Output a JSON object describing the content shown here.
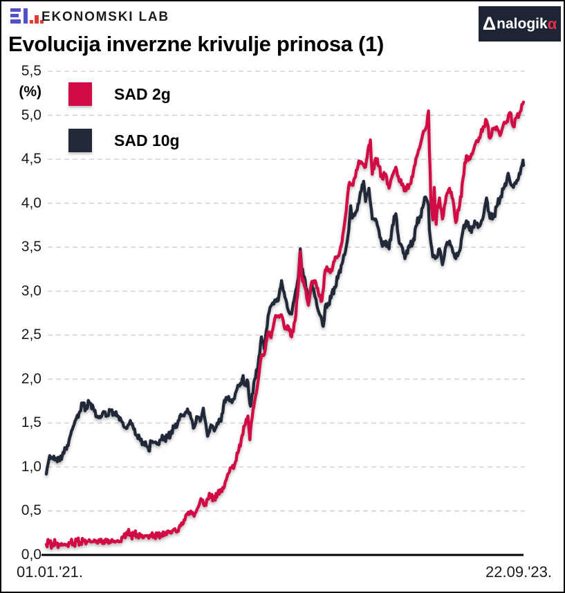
{
  "header": {
    "brand": "EKONOMSKI LAB",
    "badge": {
      "delta": "Δ",
      "white_text": "nalogik",
      "alpha": "α"
    }
  },
  "title": "Evolucija inverzne krivulje prinosa (1)",
  "colors": {
    "line_red": "#d30b44",
    "line_navy": "#212838",
    "logo_purple": "#5450c7",
    "logo_red": "#e73a31",
    "badge_bg": "#1d2433",
    "badge_alpha": "#e62e4d",
    "grid": "#cccccc",
    "axis": "#000000"
  },
  "chart_data": {
    "type": "line",
    "title": "Evolucija inverzne krivulje prinosa (1)",
    "ylabel": "(%)",
    "ylim": [
      0,
      5.5
    ],
    "ytick_step": 0.5,
    "grid": "dashed-horizontal",
    "legend_position": "top-left-inside",
    "x_unit": "days since 01.01.2021",
    "x_range_days": [
      0,
      994
    ],
    "x_start_label": "01.01.'21.",
    "x_end_label": "22.09.'23.",
    "yticks": [
      {
        "v": 0.0,
        "label": "0,0"
      },
      {
        "v": 0.5,
        "label": "0,5"
      },
      {
        "v": 1.0,
        "label": "1,0"
      },
      {
        "v": 1.5,
        "label": "1,5"
      },
      {
        "v": 2.0,
        "label": "2,0"
      },
      {
        "v": 2.5,
        "label": "2,5"
      },
      {
        "v": 3.0,
        "label": "3,0"
      },
      {
        "v": 3.5,
        "label": "3,5"
      },
      {
        "v": 4.0,
        "label": "4,0"
      },
      {
        "v": 4.5,
        "label": "4,5"
      },
      {
        "v": 5.0,
        "label": "5,0"
      },
      {
        "v": 5.5,
        "label": "5,5"
      }
    ],
    "series": [
      {
        "name": "SAD 10g",
        "color": "#212838",
        "points": [
          [
            0,
            0.92
          ],
          [
            7,
            1.13
          ],
          [
            14,
            1.09
          ],
          [
            21,
            1.1
          ],
          [
            28,
            1.07
          ],
          [
            35,
            1.17
          ],
          [
            42,
            1.2
          ],
          [
            49,
            1.34
          ],
          [
            56,
            1.46
          ],
          [
            63,
            1.56
          ],
          [
            70,
            1.63
          ],
          [
            77,
            1.73
          ],
          [
            84,
            1.66
          ],
          [
            89,
            1.74
          ],
          [
            98,
            1.67
          ],
          [
            105,
            1.57
          ],
          [
            112,
            1.56
          ],
          [
            119,
            1.63
          ],
          [
            126,
            1.58
          ],
          [
            133,
            1.64
          ],
          [
            140,
            1.62
          ],
          [
            147,
            1.58
          ],
          [
            154,
            1.56
          ],
          [
            161,
            1.46
          ],
          [
            168,
            1.44
          ],
          [
            175,
            1.53
          ],
          [
            182,
            1.43
          ],
          [
            189,
            1.36
          ],
          [
            196,
            1.3
          ],
          [
            203,
            1.28
          ],
          [
            210,
            1.23
          ],
          [
            215,
            1.18
          ],
          [
            217,
            1.3
          ],
          [
            224,
            1.28
          ],
          [
            231,
            1.26
          ],
          [
            238,
            1.31
          ],
          [
            245,
            1.33
          ],
          [
            252,
            1.34
          ],
          [
            259,
            1.37
          ],
          [
            266,
            1.46
          ],
          [
            273,
            1.48
          ],
          [
            280,
            1.6
          ],
          [
            287,
            1.58
          ],
          [
            294,
            1.66
          ],
          [
            301,
            1.56
          ],
          [
            308,
            1.45
          ],
          [
            315,
            1.57
          ],
          [
            322,
            1.54
          ],
          [
            327,
            1.67
          ],
          [
            336,
            1.35
          ],
          [
            343,
            1.48
          ],
          [
            350,
            1.41
          ],
          [
            356,
            1.5
          ],
          [
            364,
            1.52
          ],
          [
            371,
            1.76
          ],
          [
            378,
            1.78
          ],
          [
            385,
            1.75
          ],
          [
            392,
            1.78
          ],
          [
            399,
            1.93
          ],
          [
            406,
            1.94
          ],
          [
            410,
            2.04
          ],
          [
            413,
            1.93
          ],
          [
            420,
            1.97
          ],
          [
            424,
            1.72
          ],
          [
            427,
            1.74
          ],
          [
            434,
            2.0
          ],
          [
            441,
            2.15
          ],
          [
            448,
            2.48
          ],
          [
            454,
            2.34
          ],
          [
            462,
            2.72
          ],
          [
            468,
            2.83
          ],
          [
            476,
            2.9
          ],
          [
            483,
            2.89
          ],
          [
            490,
            3.12
          ],
          [
            497,
            2.93
          ],
          [
            504,
            2.78
          ],
          [
            511,
            2.74
          ],
          [
            518,
            2.96
          ],
          [
            525,
            3.15
          ],
          [
            529,
            3.48
          ],
          [
            532,
            3.25
          ],
          [
            539,
            3.13
          ],
          [
            546,
            2.88
          ],
          [
            553,
            3.09
          ],
          [
            560,
            2.93
          ],
          [
            567,
            2.77
          ],
          [
            574,
            2.67
          ],
          [
            577,
            2.6
          ],
          [
            581,
            2.83
          ],
          [
            588,
            2.84
          ],
          [
            595,
            2.98
          ],
          [
            602,
            3.04
          ],
          [
            609,
            3.2
          ],
          [
            616,
            3.31
          ],
          [
            623,
            3.45
          ],
          [
            630,
            3.69
          ],
          [
            634,
            3.97
          ],
          [
            637,
            3.83
          ],
          [
            644,
            3.89
          ],
          [
            651,
            4.0
          ],
          [
            658,
            4.21
          ],
          [
            661,
            4.25
          ],
          [
            665,
            4.02
          ],
          [
            672,
            4.17
          ],
          [
            679,
            3.82
          ],
          [
            686,
            3.82
          ],
          [
            693,
            3.68
          ],
          [
            700,
            3.51
          ],
          [
            707,
            3.57
          ],
          [
            714,
            3.48
          ],
          [
            721,
            3.75
          ],
          [
            728,
            3.88
          ],
          [
            735,
            3.55
          ],
          [
            742,
            3.49
          ],
          [
            747,
            3.37
          ],
          [
            756,
            3.52
          ],
          [
            763,
            3.53
          ],
          [
            770,
            3.74
          ],
          [
            777,
            3.82
          ],
          [
            784,
            3.95
          ],
          [
            790,
            4.07
          ],
          [
            796,
            3.98
          ],
          [
            798,
            3.7
          ],
          [
            801,
            3.55
          ],
          [
            805,
            3.39
          ],
          [
            812,
            3.38
          ],
          [
            819,
            3.48
          ],
          [
            825,
            3.3
          ],
          [
            833,
            3.52
          ],
          [
            840,
            3.57
          ],
          [
            847,
            3.44
          ],
          [
            853,
            3.37
          ],
          [
            861,
            3.46
          ],
          [
            868,
            3.69
          ],
          [
            875,
            3.8
          ],
          [
            882,
            3.69
          ],
          [
            889,
            3.74
          ],
          [
            896,
            3.77
          ],
          [
            903,
            3.74
          ],
          [
            910,
            3.84
          ],
          [
            917,
            4.06
          ],
          [
            924,
            3.83
          ],
          [
            931,
            3.84
          ],
          [
            938,
            3.96
          ],
          [
            945,
            4.05
          ],
          [
            952,
            4.16
          ],
          [
            959,
            4.25
          ],
          [
            962,
            4.34
          ],
          [
            966,
            4.24
          ],
          [
            973,
            4.18
          ],
          [
            980,
            4.26
          ],
          [
            987,
            4.33
          ],
          [
            993,
            4.49
          ],
          [
            994,
            4.43
          ]
        ]
      },
      {
        "name": "SAD 2g",
        "color": "#d30b44",
        "points": [
          [
            0,
            0.12
          ],
          [
            7,
            0.14
          ],
          [
            14,
            0.12
          ],
          [
            21,
            0.13
          ],
          [
            28,
            0.11
          ],
          [
            35,
            0.12
          ],
          [
            42,
            0.11
          ],
          [
            49,
            0.14
          ],
          [
            56,
            0.13
          ],
          [
            63,
            0.16
          ],
          [
            70,
            0.14
          ],
          [
            77,
            0.16
          ],
          [
            84,
            0.15
          ],
          [
            91,
            0.16
          ],
          [
            98,
            0.15
          ],
          [
            105,
            0.16
          ],
          [
            112,
            0.15
          ],
          [
            119,
            0.16
          ],
          [
            126,
            0.15
          ],
          [
            133,
            0.16
          ],
          [
            140,
            0.15
          ],
          [
            147,
            0.16
          ],
          [
            154,
            0.15
          ],
          [
            161,
            0.21
          ],
          [
            168,
            0.26
          ],
          [
            175,
            0.22
          ],
          [
            182,
            0.25
          ],
          [
            189,
            0.21
          ],
          [
            196,
            0.23
          ],
          [
            203,
            0.2
          ],
          [
            210,
            0.22
          ],
          [
            217,
            0.21
          ],
          [
            224,
            0.23
          ],
          [
            231,
            0.21
          ],
          [
            238,
            0.24
          ],
          [
            245,
            0.22
          ],
          [
            252,
            0.27
          ],
          [
            259,
            0.25
          ],
          [
            266,
            0.29
          ],
          [
            273,
            0.27
          ],
          [
            280,
            0.33
          ],
          [
            287,
            0.4
          ],
          [
            294,
            0.46
          ],
          [
            301,
            0.5
          ],
          [
            308,
            0.44
          ],
          [
            315,
            0.53
          ],
          [
            322,
            0.64
          ],
          [
            329,
            0.56
          ],
          [
            336,
            0.64
          ],
          [
            343,
            0.68
          ],
          [
            350,
            0.63
          ],
          [
            357,
            0.7
          ],
          [
            364,
            0.73
          ],
          [
            371,
            0.78
          ],
          [
            378,
            0.92
          ],
          [
            385,
            0.99
          ],
          [
            392,
            1.02
          ],
          [
            399,
            1.16
          ],
          [
            406,
            1.31
          ],
          [
            413,
            1.47
          ],
          [
            420,
            1.58
          ],
          [
            424,
            1.31
          ],
          [
            427,
            1.5
          ],
          [
            434,
            1.75
          ],
          [
            441,
            1.97
          ],
          [
            448,
            2.27
          ],
          [
            454,
            2.28
          ],
          [
            462,
            2.53
          ],
          [
            468,
            2.47
          ],
          [
            476,
            2.69
          ],
          [
            483,
            2.72
          ],
          [
            490,
            2.73
          ],
          [
            497,
            2.57
          ],
          [
            504,
            2.6
          ],
          [
            511,
            2.48
          ],
          [
            518,
            2.66
          ],
          [
            525,
            3.06
          ],
          [
            529,
            3.45
          ],
          [
            532,
            3.17
          ],
          [
            539,
            3.04
          ],
          [
            546,
            2.84
          ],
          [
            553,
            3.11
          ],
          [
            560,
            3.12
          ],
          [
            567,
            2.97
          ],
          [
            574,
            2.89
          ],
          [
            581,
            3.24
          ],
          [
            588,
            3.25
          ],
          [
            595,
            3.23
          ],
          [
            602,
            3.39
          ],
          [
            609,
            3.4
          ],
          [
            616,
            3.56
          ],
          [
            623,
            3.85
          ],
          [
            630,
            4.2
          ],
          [
            637,
            4.22
          ],
          [
            644,
            4.3
          ],
          [
            651,
            4.48
          ],
          [
            658,
            4.45
          ],
          [
            665,
            4.41
          ],
          [
            672,
            4.66
          ],
          [
            675,
            4.72
          ],
          [
            679,
            4.33
          ],
          [
            686,
            4.51
          ],
          [
            693,
            4.42
          ],
          [
            700,
            4.28
          ],
          [
            707,
            4.33
          ],
          [
            714,
            4.17
          ],
          [
            721,
            4.32
          ],
          [
            728,
            4.41
          ],
          [
            735,
            4.25
          ],
          [
            742,
            4.22
          ],
          [
            749,
            4.14
          ],
          [
            756,
            4.21
          ],
          [
            763,
            4.3
          ],
          [
            770,
            4.51
          ],
          [
            777,
            4.62
          ],
          [
            784,
            4.78
          ],
          [
            791,
            4.86
          ],
          [
            796,
            5.05
          ],
          [
            798,
            4.6
          ],
          [
            801,
            4.03
          ],
          [
            803,
            3.93
          ],
          [
            805,
            3.81
          ],
          [
            808,
            4.18
          ],
          [
            810,
            3.94
          ],
          [
            812,
            3.76
          ],
          [
            815,
            3.96
          ],
          [
            819,
            4.06
          ],
          [
            825,
            3.82
          ],
          [
            833,
            4.08
          ],
          [
            840,
            4.17
          ],
          [
            847,
            4.04
          ],
          [
            853,
            3.78
          ],
          [
            861,
            3.98
          ],
          [
            868,
            4.28
          ],
          [
            875,
            4.54
          ],
          [
            882,
            4.5
          ],
          [
            889,
            4.59
          ],
          [
            896,
            4.71
          ],
          [
            903,
            4.74
          ],
          [
            910,
            4.87
          ],
          [
            917,
            4.94
          ],
          [
            924,
            4.74
          ],
          [
            931,
            4.84
          ],
          [
            938,
            4.87
          ],
          [
            945,
            4.77
          ],
          [
            952,
            4.89
          ],
          [
            959,
            4.93
          ],
          [
            966,
            5.03
          ],
          [
            973,
            4.87
          ],
          [
            980,
            4.98
          ],
          [
            987,
            5.04
          ],
          [
            994,
            5.15
          ]
        ]
      }
    ]
  }
}
